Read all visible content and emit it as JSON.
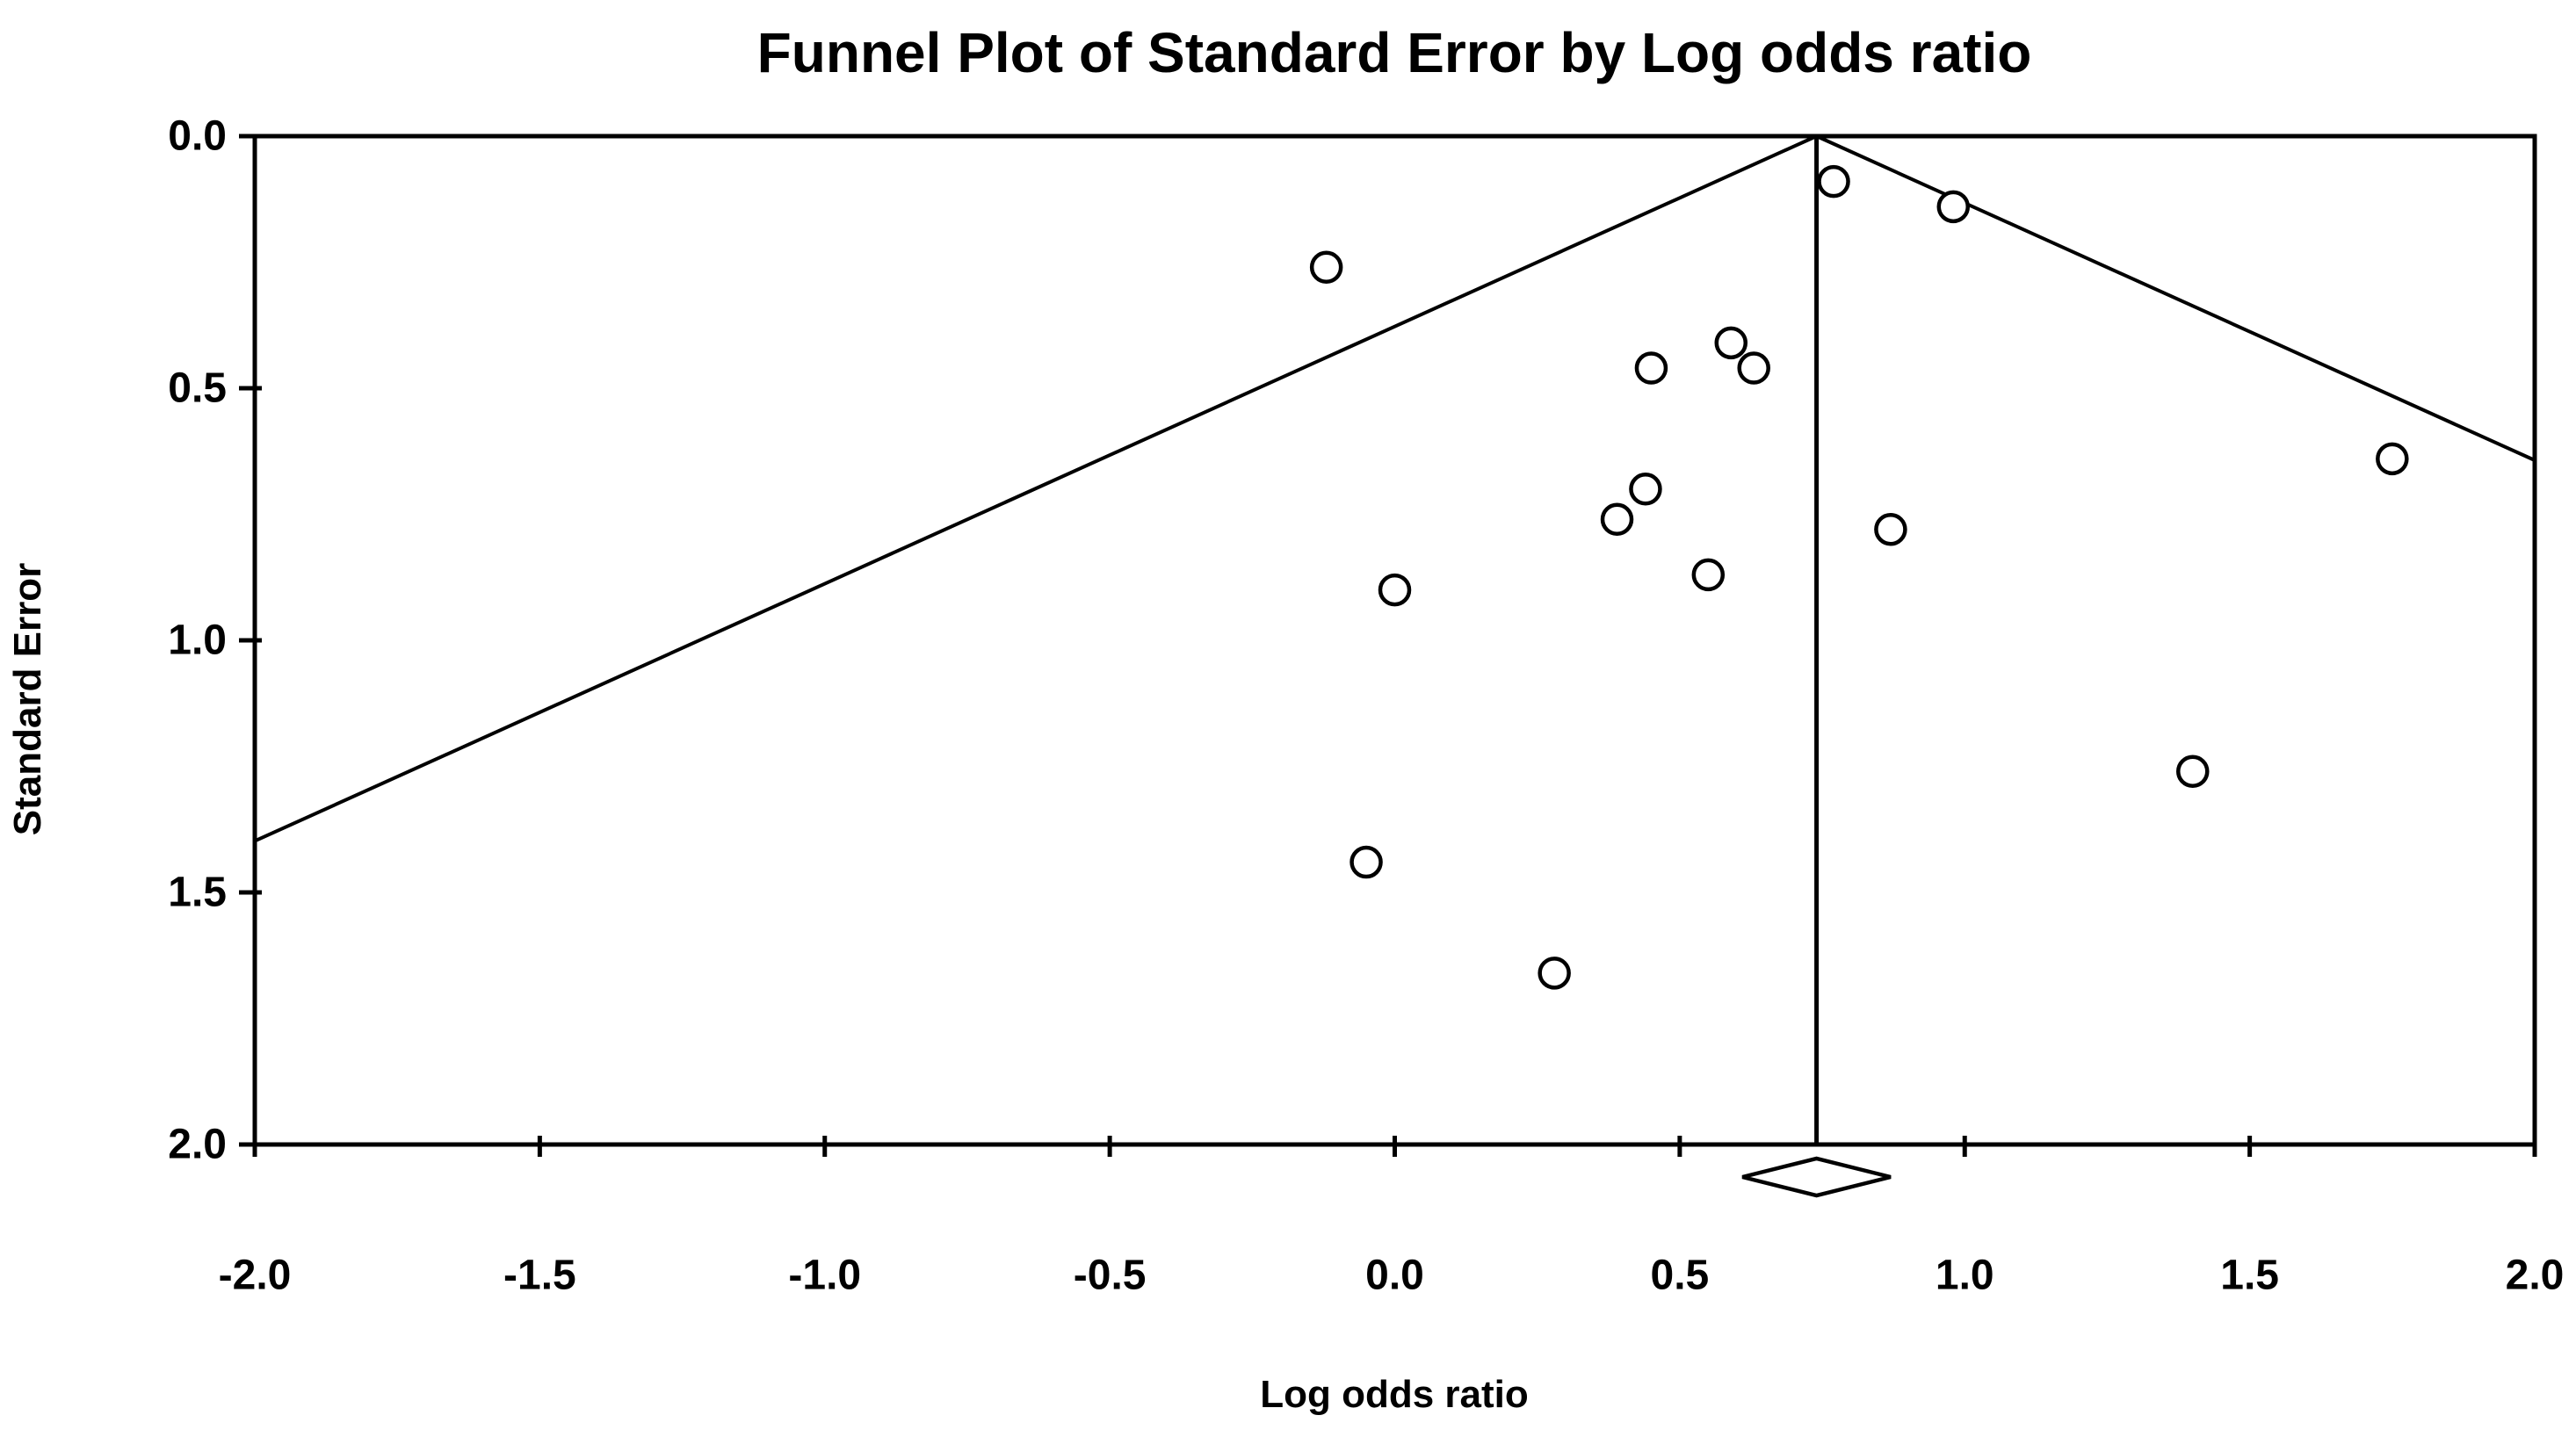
{
  "page": {
    "background_color": "#ffffff",
    "foreground_color": "#000000"
  },
  "chart_data": {
    "type": "scatter",
    "title": "Funnel Plot of Standard Error by Log odds ratio",
    "xlabel": "Log odds ratio",
    "ylabel": "Standard Error",
    "xlim": [
      -2.0,
      2.0
    ],
    "ylim": [
      0.0,
      2.0
    ],
    "y_axis_inverted": true,
    "grid": false,
    "legend": "none",
    "x_ticks": [
      -2.0,
      -1.5,
      -1.0,
      -0.5,
      0.0,
      0.5,
      1.0,
      1.5,
      2.0
    ],
    "x_tick_labels": [
      "-2.0",
      "-1.5",
      "-1.0",
      "-0.5",
      "0.0",
      "0.5",
      "1.0",
      "1.5",
      "2.0"
    ],
    "y_ticks": [
      0.0,
      0.5,
      1.0,
      1.5,
      2.0
    ],
    "y_tick_labels": [
      "0.0",
      "0.5",
      "1.0",
      "1.5",
      "2.0"
    ],
    "series": [
      {
        "name": "studies",
        "marker": "open-circle",
        "points": [
          {
            "log_odds_ratio": 0.77,
            "standard_error": 0.09
          },
          {
            "log_odds_ratio": 0.98,
            "standard_error": 0.14
          },
          {
            "log_odds_ratio": -0.12,
            "standard_error": 0.26
          },
          {
            "log_odds_ratio": 0.59,
            "standard_error": 0.41
          },
          {
            "log_odds_ratio": 0.45,
            "standard_error": 0.46
          },
          {
            "log_odds_ratio": 0.63,
            "standard_error": 0.46
          },
          {
            "log_odds_ratio": 1.75,
            "standard_error": 0.64
          },
          {
            "log_odds_ratio": 0.44,
            "standard_error": 0.7
          },
          {
            "log_odds_ratio": 0.39,
            "standard_error": 0.76
          },
          {
            "log_odds_ratio": 0.87,
            "standard_error": 0.78
          },
          {
            "log_odds_ratio": 0.55,
            "standard_error": 0.87
          },
          {
            "log_odds_ratio": 0.0,
            "standard_error": 0.9
          },
          {
            "log_odds_ratio": 1.4,
            "standard_error": 1.26
          },
          {
            "log_odds_ratio": -0.05,
            "standard_error": 1.44
          },
          {
            "log_odds_ratio": 0.28,
            "standard_error": 1.66
          }
        ]
      }
    ],
    "funnel": {
      "apex_log_odds_ratio": 0.74,
      "slope_z": 1.96,
      "left_edge_se": 1.4,
      "right_edge_se": 0.64,
      "center_line": true
    },
    "summary_diamond": {
      "center_log_odds_ratio": 0.74,
      "half_width_log_odds_ratio": 0.13
    },
    "colors": {
      "stroke": "#000000",
      "marker_fill": "#ffffff",
      "background": "#ffffff"
    }
  }
}
